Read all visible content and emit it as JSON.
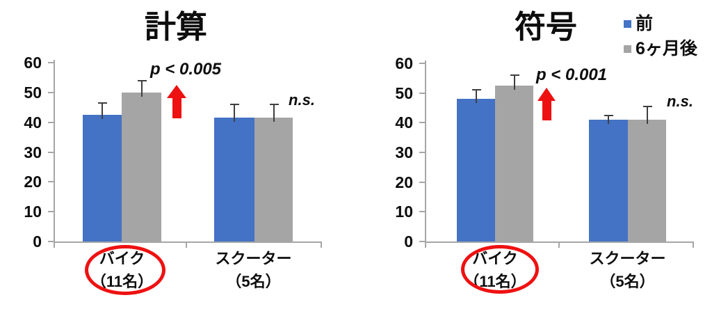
{
  "figure": {
    "background": "#FFFFFF"
  },
  "colors": {
    "series_pre": "#4472C4",
    "series_post": "#A5A5A5",
    "accent_red": "#EE1111",
    "axis_line": "#A6A6A6",
    "error_bar": "#3F3F3F",
    "text": "#0D0D0D"
  },
  "legend": {
    "items": [
      {
        "label": "前",
        "color": "#4472C4"
      },
      {
        "label": "6ヶ月後",
        "color": "#A5A5A5"
      }
    ]
  },
  "chart_data": [
    {
      "type": "bar",
      "title": "計算",
      "categories": [
        "バイク（11名）",
        "スクーター（5名）"
      ],
      "category_label_lines": [
        [
          "バイク",
          "（11名）"
        ],
        [
          "スクーター",
          "（5名）"
        ]
      ],
      "series": [
        {
          "name": "前",
          "values": [
            42.5,
            41.5
          ],
          "errors": [
            4,
            4.5
          ]
        },
        {
          "name": "6ヶ月後",
          "values": [
            50,
            41.5
          ],
          "errors": [
            4,
            4.5
          ]
        }
      ],
      "ylim": [
        0,
        60
      ],
      "ytick_step": 10,
      "ytick_labels": [
        "0",
        "10",
        "20",
        "30",
        "40",
        "50",
        "60"
      ],
      "grid": false,
      "legend_position": "top-right",
      "significance_label": "p < 0.005",
      "ns_label": "n.s.",
      "highlighted_category": "バイク（11名）"
    },
    {
      "type": "bar",
      "title": "符号",
      "categories": [
        "バイク（11名）",
        "スクーター（5名）"
      ],
      "category_label_lines": [
        [
          "バイク",
          "（11名）"
        ],
        [
          "スクーター",
          "（5名）"
        ]
      ],
      "series": [
        {
          "name": "前",
          "values": [
            48,
            41
          ],
          "errors": [
            3,
            1.5
          ]
        },
        {
          "name": "6ヶ月後",
          "values": [
            52.5,
            41
          ],
          "errors": [
            3.5,
            4.5
          ]
        }
      ],
      "ylim": [
        0,
        60
      ],
      "ytick_step": 10,
      "ytick_labels": [
        "0",
        "10",
        "20",
        "30",
        "40",
        "50",
        "60"
      ],
      "grid": false,
      "legend_position": "top-right",
      "significance_label": "p < 0.001",
      "ns_label": "n.s.",
      "highlighted_category": "バイク（11名）"
    }
  ]
}
